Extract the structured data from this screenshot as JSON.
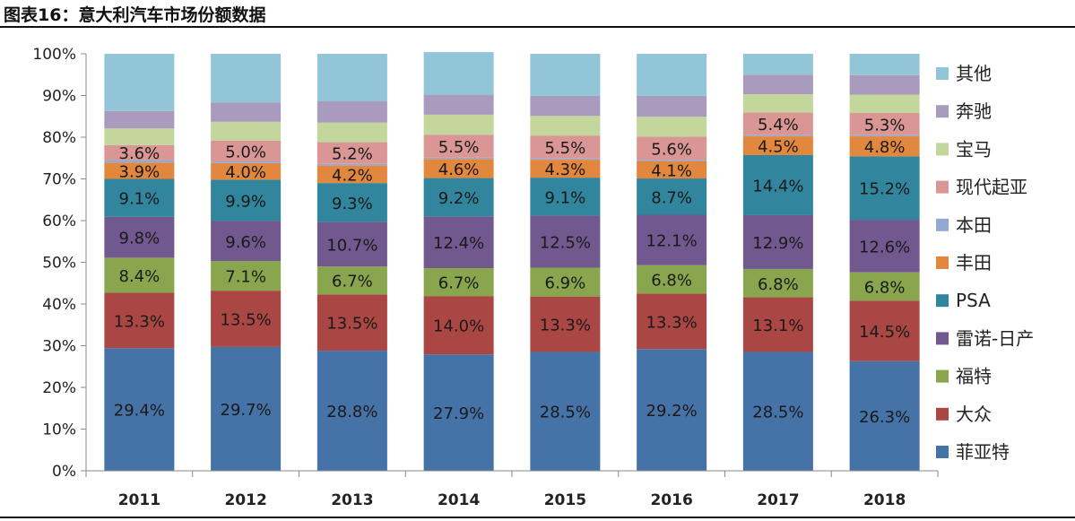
{
  "figure_title": "图表16：意大利汽车市场份额数据",
  "chart_data": {
    "type": "bar",
    "stacked": true,
    "normalized": true,
    "title": "图表16：意大利汽车市场份额数据",
    "xlabel": "",
    "ylabel": "",
    "ylim": [
      0,
      100
    ],
    "yticks": [
      "0%",
      "10%",
      "20%",
      "30%",
      "40%",
      "50%",
      "60%",
      "70%",
      "80%",
      "90%",
      "100%"
    ],
    "categories": [
      "2011",
      "2012",
      "2013",
      "2014",
      "2015",
      "2016",
      "2017",
      "2018"
    ],
    "legend_position": "right",
    "series": [
      {
        "name": "菲亚特",
        "color": "#4572a7",
        "values": [
          29.4,
          29.7,
          28.8,
          27.9,
          28.5,
          29.2,
          28.5,
          26.3
        ],
        "labels": [
          "29.4%",
          "29.7%",
          "28.8%",
          "27.9%",
          "28.5%",
          "29.2%",
          "28.5%",
          "26.3%"
        ]
      },
      {
        "name": "大众",
        "color": "#aa4643",
        "values": [
          13.3,
          13.5,
          13.5,
          14.0,
          13.3,
          13.3,
          13.1,
          14.5
        ],
        "labels": [
          "13.3%",
          "13.5%",
          "13.5%",
          "14.0%",
          "13.3%",
          "13.3%",
          "13.1%",
          "14.5%"
        ]
      },
      {
        "name": "福特",
        "color": "#89a54e",
        "values": [
          8.4,
          7.1,
          6.7,
          6.7,
          6.9,
          6.8,
          6.8,
          6.8
        ],
        "labels": [
          "8.4%",
          "7.1%",
          "6.7%",
          "6.7%",
          "6.9%",
          "6.8%",
          "6.8%",
          "6.8%"
        ]
      },
      {
        "name": "雷诺-日产",
        "color": "#71588f",
        "values": [
          9.8,
          9.6,
          10.7,
          12.4,
          12.5,
          12.1,
          12.9,
          12.6
        ],
        "labels": [
          "9.8%",
          "9.6%",
          "10.7%",
          "12.4%",
          "12.5%",
          "12.1%",
          "12.9%",
          "12.6%"
        ]
      },
      {
        "name": "PSA",
        "color": "#31859c",
        "values": [
          9.1,
          9.9,
          9.3,
          9.2,
          9.1,
          8.7,
          14.4,
          15.2
        ],
        "labels": [
          "9.1%",
          "9.9%",
          "9.3%",
          "9.2%",
          "9.1%",
          "8.7%",
          "14.4%",
          "15.2%"
        ]
      },
      {
        "name": "丰田",
        "color": "#e2883e",
        "values": [
          3.9,
          4.0,
          4.2,
          4.6,
          4.3,
          4.1,
          4.5,
          4.8
        ],
        "labels": [
          "3.9%",
          "4.0%",
          "4.2%",
          "4.6%",
          "4.3%",
          "4.1%",
          "4.5%",
          "4.8%"
        ]
      },
      {
        "name": "本田",
        "color": "#93a9d0",
        "values": [
          0.6,
          0.4,
          0.4,
          0.3,
          0.3,
          0.3,
          0.3,
          0.3
        ],
        "labels": [
          "",
          "",
          "",
          "",
          "",
          "",
          "",
          ""
        ]
      },
      {
        "name": "现代起亚",
        "color": "#d99694",
        "values": [
          3.6,
          5.0,
          5.2,
          5.5,
          5.5,
          5.6,
          5.4,
          5.3
        ],
        "labels": [
          "3.6%",
          "5.0%",
          "5.2%",
          "5.5%",
          "5.5%",
          "5.6%",
          "5.4%",
          "5.3%"
        ]
      },
      {
        "name": "宝马",
        "color": "#c3d69b",
        "values": [
          4.0,
          4.5,
          4.7,
          4.8,
          4.7,
          4.8,
          4.4,
          4.4
        ],
        "labels": [
          "",
          "",
          "",
          "",
          "",
          "",
          "",
          ""
        ]
      },
      {
        "name": "奔驰",
        "color": "#a99bbd",
        "values": [
          4.2,
          4.6,
          5.1,
          4.8,
          4.8,
          5.0,
          4.7,
          4.7
        ],
        "labels": [
          "",
          "",
          "",
          "",
          "",
          "",
          "",
          ""
        ]
      },
      {
        "name": "其他",
        "color": "#92c5d8",
        "values": [
          13.7,
          11.7,
          11.4,
          10.2,
          10.1,
          10.1,
          5.0,
          5.1
        ],
        "labels": [
          "",
          "",
          "",
          "",
          "",
          "",
          "",
          ""
        ]
      }
    ],
    "legend_order": [
      "其他",
      "奔驰",
      "宝马",
      "现代起亚",
      "本田",
      "丰田",
      "PSA",
      "雷诺-日产",
      "福特",
      "大众",
      "菲亚特"
    ]
  }
}
